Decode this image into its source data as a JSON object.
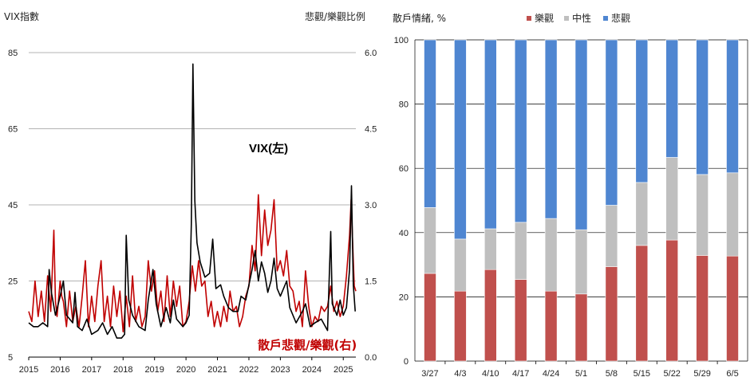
{
  "chart_data": [
    {
      "type": "line",
      "title": "",
      "ylabel_left": "VIX指數",
      "ylabel_right": "悲觀/樂觀比例",
      "ylim_left": [
        5,
        85
      ],
      "ylim_right": [
        0.0,
        6.0
      ],
      "yticks_left": [
        "5",
        "25",
        "45",
        "65",
        "85"
      ],
      "yticks_right": [
        "0.0",
        "1.5",
        "3.0",
        "4.5",
        "6.0"
      ],
      "xticks": [
        "2015",
        "2016",
        "2017",
        "2018",
        "2019",
        "2020",
        "2021",
        "2022",
        "2023",
        "2024",
        "2025"
      ],
      "x_range": [
        2015.0,
        2025.4
      ],
      "grid": true,
      "series": [
        {
          "name": "VIX(左)",
          "axis": "left",
          "color": "#000000",
          "points": [
            [
              2015.0,
              14
            ],
            [
              2015.15,
              13
            ],
            [
              2015.3,
              13
            ],
            [
              2015.45,
              14
            ],
            [
              2015.6,
              13
            ],
            [
              2015.65,
              28
            ],
            [
              2015.72,
              22
            ],
            [
              2015.85,
              16
            ],
            [
              2016.0,
              21
            ],
            [
              2016.1,
              25
            ],
            [
              2016.2,
              16
            ],
            [
              2016.4,
              14
            ],
            [
              2016.47,
              22
            ],
            [
              2016.55,
              13
            ],
            [
              2016.7,
              12
            ],
            [
              2016.85,
              15
            ],
            [
              2017.0,
              11
            ],
            [
              2017.2,
              12
            ],
            [
              2017.35,
              14
            ],
            [
              2017.5,
              11
            ],
            [
              2017.65,
              13
            ],
            [
              2017.8,
              10
            ],
            [
              2017.95,
              10
            ],
            [
              2018.05,
              11
            ],
            [
              2018.1,
              37
            ],
            [
              2018.18,
              20
            ],
            [
              2018.3,
              16
            ],
            [
              2018.5,
              13
            ],
            [
              2018.7,
              12
            ],
            [
              2018.8,
              20
            ],
            [
              2018.95,
              28
            ],
            [
              2019.05,
              19
            ],
            [
              2019.2,
              13
            ],
            [
              2019.37,
              18
            ],
            [
              2019.5,
              14
            ],
            [
              2019.6,
              20
            ],
            [
              2019.7,
              15
            ],
            [
              2019.9,
              13
            ],
            [
              2020.0,
              14
            ],
            [
              2020.1,
              16
            ],
            [
              2020.17,
              40
            ],
            [
              2020.22,
              82
            ],
            [
              2020.28,
              46
            ],
            [
              2020.35,
              35
            ],
            [
              2020.45,
              30
            ],
            [
              2020.6,
              26
            ],
            [
              2020.75,
              27
            ],
            [
              2020.85,
              36
            ],
            [
              2020.95,
              23
            ],
            [
              2021.1,
              24
            ],
            [
              2021.2,
              21
            ],
            [
              2021.35,
              18
            ],
            [
              2021.5,
              17
            ],
            [
              2021.65,
              17
            ],
            [
              2021.75,
              21
            ],
            [
              2021.9,
              20
            ],
            [
              2022.0,
              24
            ],
            [
              2022.1,
              28
            ],
            [
              2022.2,
              33
            ],
            [
              2022.3,
              25
            ],
            [
              2022.4,
              30
            ],
            [
              2022.5,
              27
            ],
            [
              2022.6,
              22
            ],
            [
              2022.7,
              25
            ],
            [
              2022.8,
              31
            ],
            [
              2022.9,
              23
            ],
            [
              2023.0,
              21
            ],
            [
              2023.2,
              25
            ],
            [
              2023.3,
              18
            ],
            [
              2023.5,
              14
            ],
            [
              2023.7,
              17
            ],
            [
              2023.8,
              19
            ],
            [
              2023.95,
              13
            ],
            [
              2024.1,
              14
            ],
            [
              2024.3,
              15
            ],
            [
              2024.5,
              12
            ],
            [
              2024.6,
              38
            ],
            [
              2024.65,
              19
            ],
            [
              2024.8,
              16
            ],
            [
              2024.9,
              20
            ],
            [
              2025.0,
              16
            ],
            [
              2025.1,
              18
            ],
            [
              2025.2,
              28
            ],
            [
              2025.26,
              50
            ],
            [
              2025.32,
              24
            ],
            [
              2025.38,
              17
            ]
          ]
        },
        {
          "name": "散戶悲觀/樂觀(右)",
          "axis": "right",
          "color": "#c00000",
          "points": [
            [
              2015.0,
              0.9
            ],
            [
              2015.1,
              0.7
            ],
            [
              2015.2,
              1.5
            ],
            [
              2015.3,
              0.8
            ],
            [
              2015.4,
              1.3
            ],
            [
              2015.5,
              0.7
            ],
            [
              2015.6,
              1.6
            ],
            [
              2015.7,
              0.9
            ],
            [
              2015.8,
              2.5
            ],
            [
              2015.85,
              1.1
            ],
            [
              2015.9,
              0.8
            ],
            [
              2016.0,
              1.5
            ],
            [
              2016.05,
              1.2
            ],
            [
              2016.1,
              1.1
            ],
            [
              2016.2,
              0.6
            ],
            [
              2016.3,
              1.3
            ],
            [
              2016.4,
              0.7
            ],
            [
              2016.5,
              1.0
            ],
            [
              2016.6,
              0.6
            ],
            [
              2016.7,
              1.2
            ],
            [
              2016.8,
              1.9
            ],
            [
              2016.9,
              0.6
            ],
            [
              2017.0,
              1.2
            ],
            [
              2017.1,
              0.7
            ],
            [
              2017.2,
              1.4
            ],
            [
              2017.3,
              1.9
            ],
            [
              2017.4,
              0.7
            ],
            [
              2017.5,
              1.2
            ],
            [
              2017.6,
              0.6
            ],
            [
              2017.7,
              1.4
            ],
            [
              2017.8,
              0.8
            ],
            [
              2017.9,
              1.3
            ],
            [
              2018.0,
              0.5
            ],
            [
              2018.1,
              1.2
            ],
            [
              2018.2,
              0.6
            ],
            [
              2018.3,
              1.6
            ],
            [
              2018.4,
              0.7
            ],
            [
              2018.5,
              1.0
            ],
            [
              2018.6,
              0.6
            ],
            [
              2018.7,
              0.8
            ],
            [
              2018.8,
              1.9
            ],
            [
              2018.9,
              1.3
            ],
            [
              2019.0,
              1.7
            ],
            [
              2019.1,
              0.9
            ],
            [
              2019.2,
              1.3
            ],
            [
              2019.3,
              0.7
            ],
            [
              2019.4,
              1.6
            ],
            [
              2019.5,
              0.8
            ],
            [
              2019.6,
              1.5
            ],
            [
              2019.7,
              1.0
            ],
            [
              2019.8,
              1.4
            ],
            [
              2019.9,
              0.6
            ],
            [
              2020.0,
              0.7
            ],
            [
              2020.1,
              1.1
            ],
            [
              2020.2,
              1.8
            ],
            [
              2020.3,
              1.3
            ],
            [
              2020.4,
              1.9
            ],
            [
              2020.5,
              1.4
            ],
            [
              2020.6,
              1.5
            ],
            [
              2020.7,
              0.8
            ],
            [
              2020.8,
              1.1
            ],
            [
              2020.9,
              0.6
            ],
            [
              2021.0,
              0.9
            ],
            [
              2021.1,
              0.6
            ],
            [
              2021.2,
              1.0
            ],
            [
              2021.3,
              0.7
            ],
            [
              2021.4,
              1.3
            ],
            [
              2021.5,
              0.9
            ],
            [
              2021.6,
              1.0
            ],
            [
              2021.7,
              0.6
            ],
            [
              2021.8,
              0.8
            ],
            [
              2021.9,
              1.2
            ],
            [
              2022.0,
              1.4
            ],
            [
              2022.1,
              2.2
            ],
            [
              2022.2,
              1.7
            ],
            [
              2022.3,
              3.2
            ],
            [
              2022.4,
              2.0
            ],
            [
              2022.5,
              2.9
            ],
            [
              2022.6,
              2.2
            ],
            [
              2022.7,
              2.5
            ],
            [
              2022.8,
              3.1
            ],
            [
              2022.9,
              1.7
            ],
            [
              2023.0,
              1.9
            ],
            [
              2023.1,
              1.6
            ],
            [
              2023.2,
              2.1
            ],
            [
              2023.3,
              1.4
            ],
            [
              2023.4,
              1.3
            ],
            [
              2023.5,
              0.9
            ],
            [
              2023.6,
              1.1
            ],
            [
              2023.7,
              0.6
            ],
            [
              2023.8,
              1.7
            ],
            [
              2023.9,
              1.0
            ],
            [
              2024.0,
              0.6
            ],
            [
              2024.1,
              0.8
            ],
            [
              2024.2,
              0.7
            ],
            [
              2024.3,
              1.0
            ],
            [
              2024.4,
              0.9
            ],
            [
              2024.5,
              1.0
            ],
            [
              2024.6,
              1.4
            ],
            [
              2024.7,
              0.9
            ],
            [
              2024.8,
              1.1
            ],
            [
              2024.9,
              0.8
            ],
            [
              2025.0,
              1.0
            ],
            [
              2025.1,
              1.6
            ],
            [
              2025.2,
              2.4
            ],
            [
              2025.25,
              3.1
            ],
            [
              2025.3,
              2.2
            ],
            [
              2025.35,
              1.4
            ],
            [
              2025.4,
              1.3
            ]
          ]
        }
      ]
    },
    {
      "type": "bar",
      "stacked": true,
      "title": "",
      "ylabel": "散戶情緒, %",
      "ylim": [
        0,
        100
      ],
      "yticks": [
        "0",
        "20",
        "40",
        "60",
        "80",
        "100"
      ],
      "grid": true,
      "legend_position": "top",
      "categories": [
        "3/27",
        "4/3",
        "4/10",
        "4/17",
        "4/24",
        "5/1",
        "5/8",
        "5/15",
        "5/22",
        "5/29",
        "6/5"
      ],
      "series": [
        {
          "name": "樂觀",
          "color": "#c0504d",
          "values": [
            27.3,
            21.8,
            28.5,
            25.4,
            21.8,
            20.9,
            29.4,
            36.0,
            37.7,
            32.9,
            32.7
          ]
        },
        {
          "name": "中性",
          "color": "#bfbfbf",
          "values": [
            20.5,
            16.2,
            12.7,
            17.8,
            22.6,
            20.0,
            19.1,
            19.6,
            25.7,
            25.2,
            25.9
          ]
        },
        {
          "name": "悲觀",
          "color": "#4f86d1",
          "values": [
            52.2,
            62.0,
            58.8,
            56.8,
            55.6,
            59.1,
            51.5,
            44.4,
            36.6,
            41.9,
            41.4
          ]
        }
      ]
    }
  ],
  "annotations": {
    "vix_label": "VIX(左)",
    "ratio_label": "散戶悲觀/樂觀(右)"
  }
}
